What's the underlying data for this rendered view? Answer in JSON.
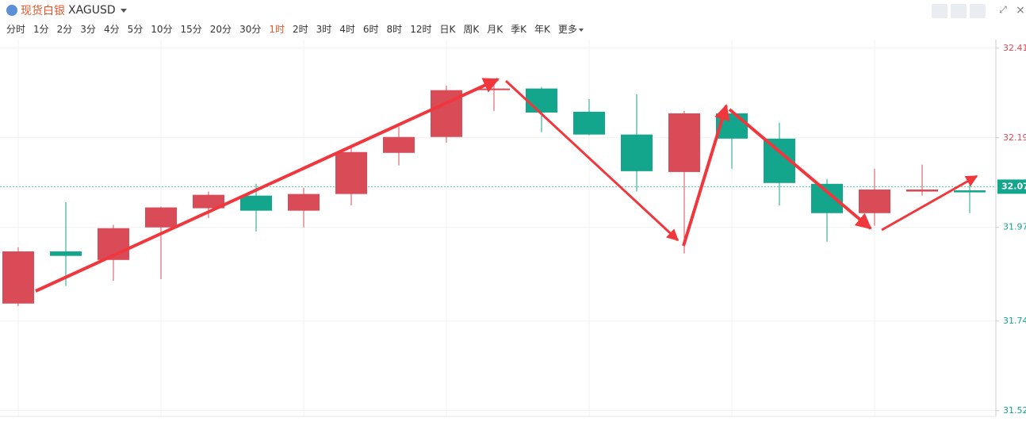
{
  "header": {
    "name": "现货白银",
    "code": "XAGUSD",
    "intervals": [
      "分时",
      "1分",
      "2分",
      "3分",
      "4分",
      "5分",
      "10分",
      "15分",
      "20分",
      "30分",
      "1时",
      "2时",
      "3时",
      "4时",
      "6时",
      "8时",
      "12时",
      "日K",
      "周K",
      "月K",
      "季K",
      "年K",
      "更多"
    ]
  },
  "chart_data": {
    "type": "candlestick",
    "open": [
      31.783,
      31.911,
      31.89,
      31.97,
      32.017,
      32.048,
      32.011,
      32.052,
      32.153,
      32.192,
      32.307,
      32.311,
      32.254,
      32.198,
      32.106,
      32.25,
      32.188,
      32.077,
      32.005,
      32.058,
      32.061
    ],
    "high": [
      31.921,
      32.032,
      31.976,
      32.021,
      32.058,
      32.077,
      32.067,
      32.169,
      32.217,
      32.318,
      32.334,
      32.315,
      32.285,
      32.297,
      32.256,
      32.256,
      32.227,
      32.089,
      32.114,
      32.124,
      32.077
    ],
    "low": [
      31.777,
      31.826,
      31.839,
      31.843,
      31.993,
      31.96,
      31.97,
      32.024,
      32.122,
      32.178,
      32.256,
      32.204,
      32.196,
      32.058,
      31.906,
      32.114,
      32.024,
      31.935,
      31.974,
      32.048,
      32.005
    ],
    "close": [
      31.911,
      31.9,
      31.968,
      32.019,
      32.05,
      32.011,
      32.052,
      32.155,
      32.192,
      32.307,
      32.311,
      32.252,
      32.198,
      32.108,
      32.25,
      32.188,
      32.079,
      32.005,
      32.063,
      32.063,
      32.056
    ],
    "up_color": "#d94b57",
    "down_color": "#14a58d",
    "ylim": [
      31.506,
      32.431
    ],
    "yticks": [
      32.41,
      32.19,
      31.97,
      31.74,
      31.52
    ],
    "last_price": 32.07,
    "grid": true
  }
}
